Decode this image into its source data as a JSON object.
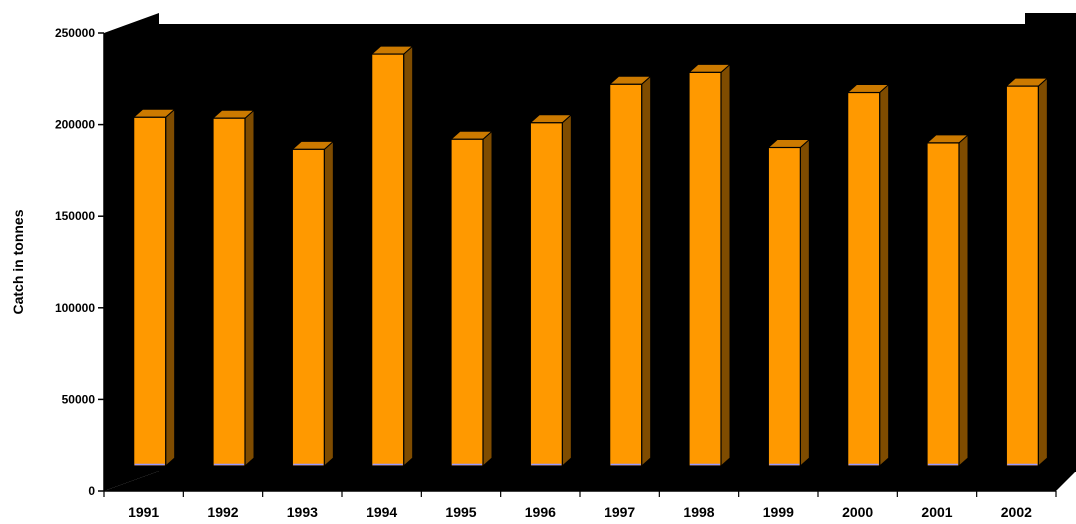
{
  "chart_data": {
    "type": "bar",
    "title": "",
    "xlabel": "",
    "ylabel": "Catch in tonnes",
    "categories": [
      "1991",
      "1992",
      "1993",
      "1994",
      "1995",
      "1996",
      "1997",
      "1998",
      "1999",
      "2000",
      "2001",
      "2002"
    ],
    "series": [
      {
        "values": [
          204000,
          203500,
          186500,
          238500,
          192000,
          201000,
          222000,
          228500,
          187500,
          217500,
          190000,
          221000
        ]
      }
    ],
    "ylim": [
      0,
      250000
    ],
    "yticks": [
      "0",
      "50000",
      "100000",
      "150000",
      "200000",
      "250000"
    ],
    "grid": false,
    "legend": "none",
    "three_d": true,
    "colors": {
      "wall": "#000000",
      "bar_front": "#FF9900",
      "bar_side": "#7F4C00",
      "bar_top": "#CC7A00",
      "bar_edge": "#000000",
      "bar_base_stripe": "#9999FF"
    }
  }
}
